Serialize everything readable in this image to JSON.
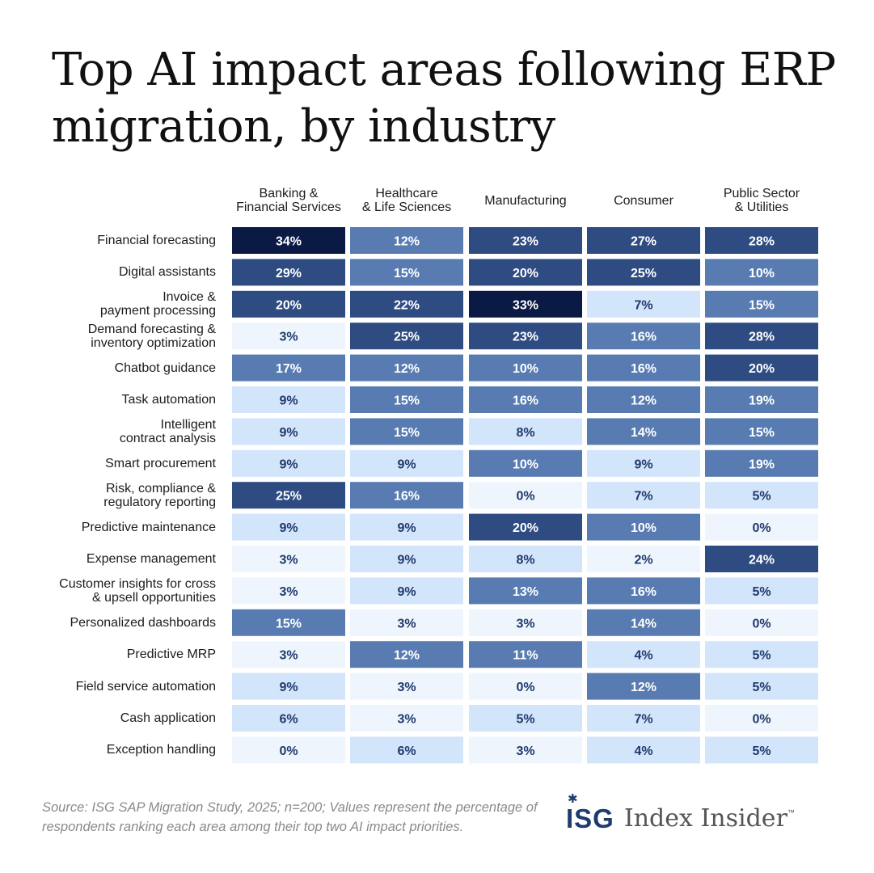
{
  "title": "Top AI impact areas following ERP migration, by industry",
  "chart_data": {
    "type": "heatmap",
    "columns": [
      "Banking &\nFinancial Services",
      "Healthcare\n& Life Sciences",
      "Manufacturing",
      "Consumer",
      "Public Sector\n& Utilities"
    ],
    "rows": [
      "Financial forecasting",
      "Digital assistants",
      "Invoice &\npayment processing",
      "Demand forecasting &\ninventory optimization",
      "Chatbot guidance",
      "Task automation",
      "Intelligent\ncontract analysis",
      "Smart procurement",
      "Risk, compliance &\nregulatory reporting",
      "Predictive maintenance",
      "Expense management",
      "Customer insights for cross\n& upsell opportunities",
      "Personalized dashboards",
      "Predictive MRP",
      "Field service automation",
      "Cash application",
      "Exception handling"
    ],
    "values": [
      [
        34,
        12,
        23,
        27,
        28
      ],
      [
        29,
        15,
        20,
        25,
        10
      ],
      [
        20,
        22,
        33,
        7,
        15
      ],
      [
        3,
        25,
        23,
        16,
        28
      ],
      [
        17,
        12,
        10,
        16,
        20
      ],
      [
        9,
        15,
        16,
        12,
        19
      ],
      [
        9,
        15,
        8,
        14,
        15
      ],
      [
        9,
        9,
        10,
        9,
        19
      ],
      [
        25,
        16,
        0,
        7,
        5
      ],
      [
        9,
        9,
        20,
        10,
        0
      ],
      [
        3,
        9,
        8,
        2,
        24
      ],
      [
        3,
        9,
        13,
        16,
        5
      ],
      [
        15,
        3,
        3,
        14,
        0
      ],
      [
        3,
        12,
        11,
        4,
        5
      ],
      [
        9,
        3,
        0,
        12,
        5
      ],
      [
        6,
        3,
        5,
        7,
        0
      ],
      [
        0,
        6,
        3,
        4,
        5
      ]
    ],
    "value_suffix": "%",
    "colors": {
      "darkest": "#0b1a45",
      "dark": "#2e4c82",
      "mid": "#587cb2",
      "light": "#d2e5fb",
      "lightest": "#eff5fd",
      "text_dark": "#1f3a6b",
      "text_light": "#ffffff"
    }
  },
  "footer": {
    "source": "Source: ISG SAP Migration Study, 2025; n=200; Values represent the percentage of respondents ranking each area among their top two AI impact priorities."
  },
  "brand": {
    "mark": "ISG",
    "name": "Index Insider",
    "tm": "™"
  }
}
